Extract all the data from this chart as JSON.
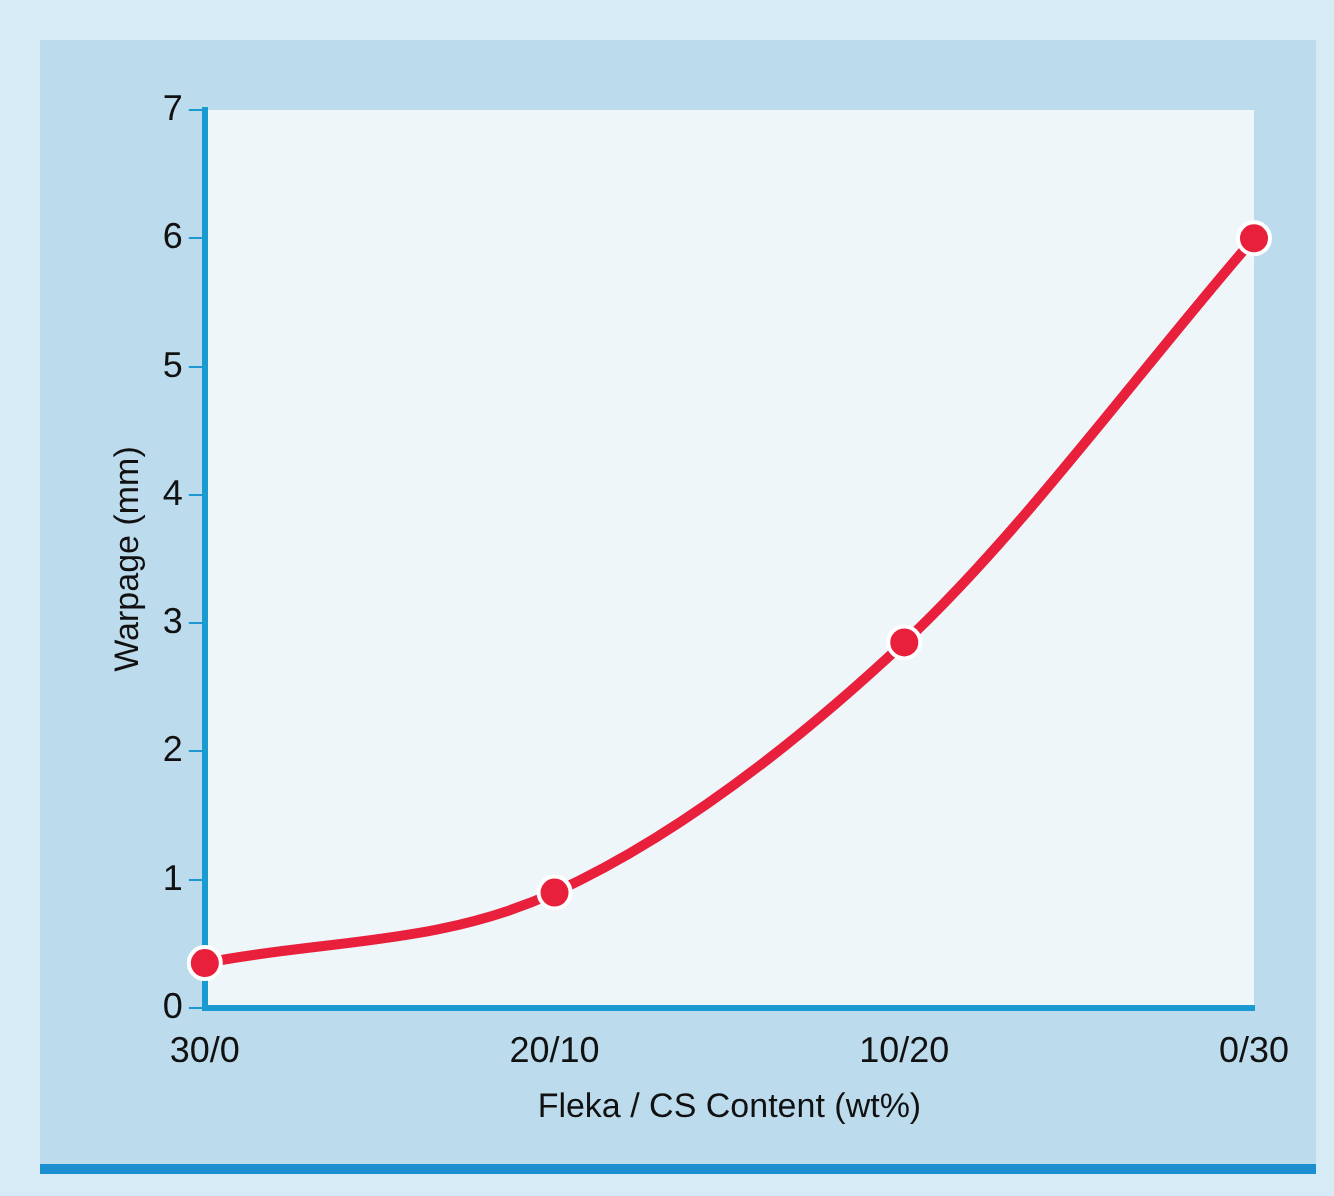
{
  "chart_data": {
    "type": "line",
    "xlabel": "Fleka / CS Content (wt%)",
    "ylabel": "Warpage (mm)",
    "categories": [
      "30/0",
      "20/10",
      "10/20",
      "0/30"
    ],
    "series": [
      {
        "color": "#e8203c",
        "values": [
          0.35,
          0.9,
          2.85,
          6.0
        ]
      }
    ],
    "ylim": [
      0,
      7
    ],
    "yticks": [
      0,
      1,
      2,
      3,
      4,
      5,
      6,
      7
    ],
    "grid": false,
    "legend": false,
    "marker": "circle",
    "line_style": "solid"
  }
}
